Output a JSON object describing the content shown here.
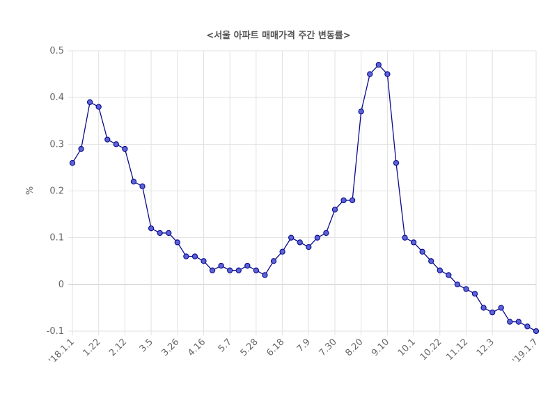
{
  "chart_data": {
    "type": "line",
    "title": "<서울 아파트 매매가격 주간 변동률>",
    "xlabel": "",
    "ylabel": "%",
    "ylim": [
      -0.1,
      0.5
    ],
    "yticks": [
      "0.5",
      "0.4",
      "0.3",
      "0.2",
      "0.1",
      "0",
      "-0.1"
    ],
    "ytick_values": [
      0.5,
      0.4,
      0.3,
      0.2,
      0.1,
      0,
      -0.1
    ],
    "grid": true,
    "line_color": "#0a0a8c",
    "point_fill": "#5b63d6",
    "xtick_labels": [
      "'18.1.1",
      "1.22",
      "2.12",
      "3.5",
      "3.26",
      "4.16",
      "5.7",
      "5.28",
      "6.18",
      "7.9",
      "7.30",
      "8.20",
      "9.10",
      "10.1",
      "10.22",
      "11.12",
      "12.3",
      "'19.1.7"
    ],
    "xtick_indices": [
      0,
      3,
      6,
      9,
      12,
      15,
      18,
      21,
      24,
      27,
      30,
      33,
      36,
      39,
      42,
      45,
      48,
      53
    ],
    "series": [
      {
        "values": [
          0.26,
          0.29,
          0.39,
          0.38,
          0.31,
          0.3,
          0.29,
          0.22,
          0.21,
          0.12,
          0.11,
          0.11,
          0.09,
          0.06,
          0.06,
          0.05,
          0.03,
          0.04,
          0.03,
          0.03,
          0.04,
          0.03,
          0.02,
          0.05,
          0.07,
          0.1,
          0.09,
          0.08,
          0.1,
          0.11,
          0.16,
          0.18,
          0.18,
          0.37,
          0.45,
          0.47,
          0.45,
          0.26,
          0.1,
          0.09,
          0.07,
          0.05,
          0.03,
          0.02,
          0.0,
          -0.01,
          -0.02,
          -0.05,
          -0.06,
          -0.05,
          -0.08,
          -0.08,
          -0.09,
          -0.1
        ]
      }
    ]
  }
}
